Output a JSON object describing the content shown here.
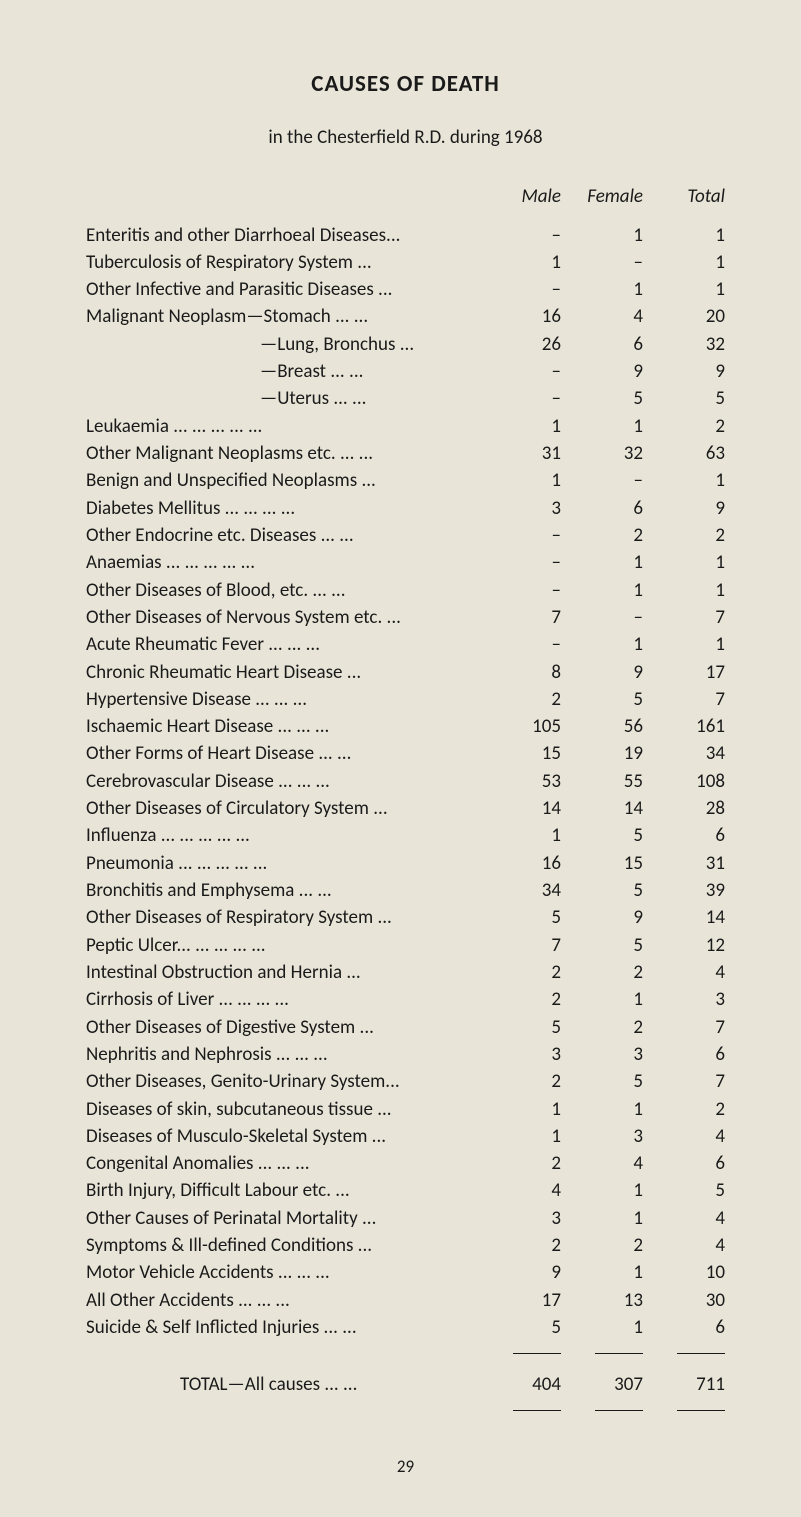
{
  "page": {
    "title": "CAUSES OF DEATH",
    "subtitle": "in the Chesterfield R.D. during 1968",
    "pageNumber": "29",
    "background_color": "#e8e5d8",
    "text_color": "#1a1a1a",
    "title_fontsize": 23,
    "body_fontsize": 19
  },
  "columns": {
    "male": "Male",
    "female": "Female",
    "total": "Total"
  },
  "rows": [
    {
      "cause": "Enteritis and other Diarrhoeal Diseases...",
      "male": "–",
      "female": "1",
      "total": "1",
      "indent": 0
    },
    {
      "cause": "Tuberculosis of Respiratory System   ...",
      "male": "1",
      "female": "–",
      "total": "1",
      "indent": 0
    },
    {
      "cause": "Other Infective and Parasitic Diseases  ...",
      "male": "–",
      "female": "1",
      "total": "1",
      "indent": 0
    },
    {
      "cause": "Malignant Neoplasm—Stomach   ...   ...",
      "male": "16",
      "female": "4",
      "total": "20",
      "indent": 0
    },
    {
      "cause": "—Lung, Bronchus ...",
      "male": "26",
      "female": "6",
      "total": "32",
      "indent": 1
    },
    {
      "cause": "—Breast    ...   ...",
      "male": "–",
      "female": "9",
      "total": "9",
      "indent": 1
    },
    {
      "cause": "—Uterus    ...   ...",
      "male": "–",
      "female": "5",
      "total": "5",
      "indent": 1
    },
    {
      "cause": "Leukaemia    ...   ...   ...   ...   ...",
      "male": "1",
      "female": "1",
      "total": "2",
      "indent": 0
    },
    {
      "cause": "Other Malignant Neoplasms etc. ...   ...",
      "male": "31",
      "female": "32",
      "total": "63",
      "indent": 0
    },
    {
      "cause": "Benign and Unspecified Neoplasms    ...",
      "male": "1",
      "female": "–",
      "total": "1",
      "indent": 0
    },
    {
      "cause": "Diabetes Mellitus   ...   ...   ...   ...",
      "male": "3",
      "female": "6",
      "total": "9",
      "indent": 0
    },
    {
      "cause": "Other Endocrine etc. Diseases   ...   ...",
      "male": "–",
      "female": "2",
      "total": "2",
      "indent": 0
    },
    {
      "cause": "Anaemias   ...   ...   ...   ...   ...",
      "male": "–",
      "female": "1",
      "total": "1",
      "indent": 0
    },
    {
      "cause": "Other Diseases of Blood, etc.   ...   ...",
      "male": "–",
      "female": "1",
      "total": "1",
      "indent": 0
    },
    {
      "cause": "Other Diseases of Nervous System etc. ...",
      "male": "7",
      "female": "–",
      "total": "7",
      "indent": 0
    },
    {
      "cause": "Acute Rheumatic Fever    ...   ...   ...",
      "male": "–",
      "female": "1",
      "total": "1",
      "indent": 0
    },
    {
      "cause": "Chronic Rheumatic Heart Disease    ...",
      "male": "8",
      "female": "9",
      "total": "17",
      "indent": 0
    },
    {
      "cause": "Hypertensive Disease    ...   ...   ...",
      "male": "2",
      "female": "5",
      "total": "7",
      "indent": 0
    },
    {
      "cause": "Ischaemic Heart Disease  ...   ...   ...",
      "male": "105",
      "female": "56",
      "total": "161",
      "indent": 0
    },
    {
      "cause": "Other Forms of Heart Disease    ...   ...",
      "male": "15",
      "female": "19",
      "total": "34",
      "indent": 0
    },
    {
      "cause": "Cerebrovascular Disease ...   ...   ...",
      "male": "53",
      "female": "55",
      "total": "108",
      "indent": 0
    },
    {
      "cause": "Other Diseases of Circulatory System  ...",
      "male": "14",
      "female": "14",
      "total": "28",
      "indent": 0
    },
    {
      "cause": "Influenza    ...   ...   ...   ...   ...",
      "male": "1",
      "female": "5",
      "total": "6",
      "indent": 0
    },
    {
      "cause": "Pneumonia ...   ...   ...   ...   ...",
      "male": "16",
      "female": "15",
      "total": "31",
      "indent": 0
    },
    {
      "cause": "Bronchitis and Emphysema    ...   ...",
      "male": "34",
      "female": "5",
      "total": "39",
      "indent": 0
    },
    {
      "cause": "Other Diseases of Respiratory System  ...",
      "male": "5",
      "female": "9",
      "total": "14",
      "indent": 0
    },
    {
      "cause": "Peptic Ulcer...   ...   ...   ...   ...",
      "male": "7",
      "female": "5",
      "total": "12",
      "indent": 0
    },
    {
      "cause": "Intestinal Obstruction and Hernia    ...",
      "male": "2",
      "female": "2",
      "total": "4",
      "indent": 0
    },
    {
      "cause": "Cirrhosis of Liver   ...   ...   ...   ...",
      "male": "2",
      "female": "1",
      "total": "3",
      "indent": 0
    },
    {
      "cause": "Other Diseases of Digestive System    ...",
      "male": "5",
      "female": "2",
      "total": "7",
      "indent": 0
    },
    {
      "cause": "Nephritis and Nephrosis   ...   ...   ...",
      "male": "3",
      "female": "3",
      "total": "6",
      "indent": 0
    },
    {
      "cause": "Other Diseases, Genito-Urinary System...",
      "male": "2",
      "female": "5",
      "total": "7",
      "indent": 0
    },
    {
      "cause": "Diseases of skin, subcutaneous tissue   ...",
      "male": "1",
      "female": "1",
      "total": "2",
      "indent": 0
    },
    {
      "cause": "Diseases of Musculo-Skeletal System    ...",
      "male": "1",
      "female": "3",
      "total": "4",
      "indent": 0
    },
    {
      "cause": "Congenital Anomalies    ...   ...   ...",
      "male": "2",
      "female": "4",
      "total": "6",
      "indent": 0
    },
    {
      "cause": "Birth Injury, Difficult Labour etc.    ...",
      "male": "4",
      "female": "1",
      "total": "5",
      "indent": 0
    },
    {
      "cause": "Other Causes of Perinatal Mortality ...",
      "male": "3",
      "female": "1",
      "total": "4",
      "indent": 0
    },
    {
      "cause": "Symptoms & Ill-defined Conditions    ...",
      "male": "2",
      "female": "2",
      "total": "4",
      "indent": 0
    },
    {
      "cause": "Motor Vehicle Accidents ...   ...   ...",
      "male": "9",
      "female": "1",
      "total": "10",
      "indent": 0
    },
    {
      "cause": "All Other Accidents    ...   ...   ...",
      "male": "17",
      "female": "13",
      "total": "30",
      "indent": 0
    },
    {
      "cause": "Suicide & Self Inflicted Injuries    ...   ...",
      "male": "5",
      "female": "1",
      "total": "6",
      "indent": 0
    }
  ],
  "total": {
    "label": "TOTAL—All causes    ...   ...",
    "male": "404",
    "female": "307",
    "total": "711"
  }
}
